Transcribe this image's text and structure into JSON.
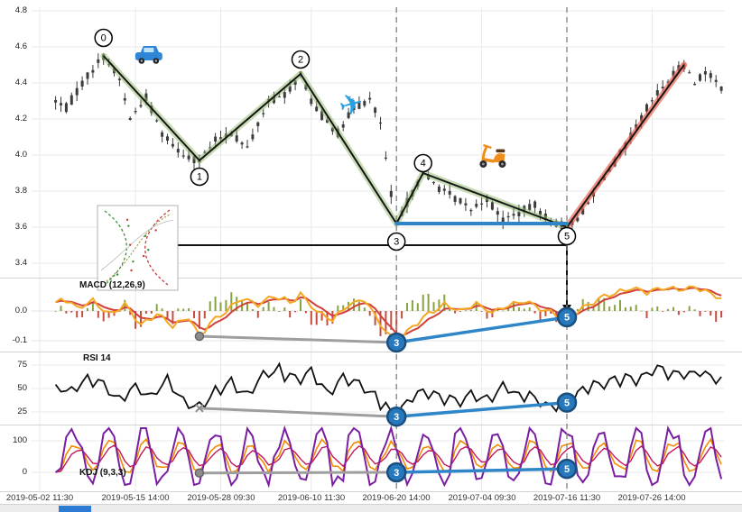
{
  "chart_data": {
    "type": "candlestick_with_indicators",
    "x_tick_labels": [
      "2019-05-02 11:30",
      "2019-05-15 14:00",
      "2019-05-28 09:30",
      "2019-06-10 11:30",
      "2019-06-20 14:00",
      "2019-07-04 09:30",
      "2019-07-16 11:30",
      "2019-07-26 14:00"
    ],
    "x_tick_bars": [
      1,
      19,
      35,
      52,
      68,
      84,
      100,
      116
    ],
    "bars": {
      "start": 4,
      "end": 129
    },
    "price_panel": {
      "y_tick_labels": [
        "4.8",
        "4.6",
        "4.4",
        "4.2",
        "4.0",
        "3.8",
        "3.6",
        "3.4"
      ],
      "y_ticks": [
        4.8,
        4.6,
        4.4,
        4.2,
        4.0,
        3.8,
        3.6,
        3.4
      ],
      "ylim": [
        3.31,
        4.82
      ],
      "price_anchors": [
        [
          4,
          4.3
        ],
        [
          6,
          4.26
        ],
        [
          9,
          4.4
        ],
        [
          13,
          4.55
        ],
        [
          16,
          4.42
        ],
        [
          18,
          4.2
        ],
        [
          21,
          4.32
        ],
        [
          24,
          4.12
        ],
        [
          28,
          4.0
        ],
        [
          31,
          3.97
        ],
        [
          34,
          4.08
        ],
        [
          37,
          4.12
        ],
        [
          40,
          4.04
        ],
        [
          44,
          4.3
        ],
        [
          47,
          4.33
        ],
        [
          50,
          4.45
        ],
        [
          52,
          4.3
        ],
        [
          54,
          4.22
        ],
        [
          57,
          4.12
        ],
        [
          60,
          4.26
        ],
        [
          63,
          4.31
        ],
        [
          65,
          4.18
        ],
        [
          66,
          3.98
        ],
        [
          67,
          3.78
        ],
        [
          68,
          3.62
        ],
        [
          70,
          3.74
        ],
        [
          73,
          3.9
        ],
        [
          76,
          3.82
        ],
        [
          79,
          3.76
        ],
        [
          82,
          3.7
        ],
        [
          85,
          3.76
        ],
        [
          88,
          3.64
        ],
        [
          91,
          3.68
        ],
        [
          94,
          3.72
        ],
        [
          97,
          3.63
        ],
        [
          100,
          3.6
        ],
        [
          103,
          3.68
        ],
        [
          106,
          3.84
        ],
        [
          109,
          3.96
        ],
        [
          112,
          4.1
        ],
        [
          115,
          4.26
        ],
        [
          118,
          4.38
        ],
        [
          121,
          4.48
        ],
        [
          122,
          4.5
        ],
        [
          124,
          4.4
        ],
        [
          126,
          4.46
        ],
        [
          129,
          4.38
        ]
      ],
      "wave_points": [
        {
          "label": "0",
          "bar": 13,
          "price": 4.55,
          "dy": -20
        },
        {
          "label": "1",
          "bar": 31,
          "price": 3.97,
          "dy": 18
        },
        {
          "label": "2",
          "bar": 50,
          "price": 4.45,
          "dy": -16
        },
        {
          "label": "3",
          "bar": 68,
          "price": 3.62,
          "dy": 20
        },
        {
          "label": "4",
          "bar": 73,
          "price": 3.9,
          "dy": -11
        },
        {
          "label": "5",
          "bar": 100,
          "price": 3.6,
          "dy": 10
        }
      ],
      "trend_end": {
        "bar": 122,
        "price": 4.5
      },
      "flat_line": {
        "from_bar": 68,
        "to_bar": 100,
        "price": 3.62
      },
      "support_line": {
        "price": 3.5,
        "from_bar": 27,
        "to_bar": 100
      },
      "dashed_vlines_bars": [
        68,
        100
      ],
      "icons": [
        {
          "name": "car-icon",
          "bar": 21.5,
          "price": 4.56
        },
        {
          "name": "airplane-icon",
          "bar": 59.5,
          "price": 4.28
        },
        {
          "name": "scooter-icon",
          "bar": 86,
          "price": 4.01
        }
      ]
    },
    "macd_panel": {
      "label": "MACD (12,26,9)",
      "y_tick_labels": [
        "0.0",
        "-0.1"
      ],
      "y_ticks": [
        0.0,
        -0.1
      ],
      "anchors": [
        [
          4,
          0.02
        ],
        [
          5,
          0.045
        ],
        [
          8,
          0.01
        ],
        [
          11,
          0.035
        ],
        [
          14,
          -0.01
        ],
        [
          17,
          0.02
        ],
        [
          20,
          -0.045
        ],
        [
          23,
          -0.01
        ],
        [
          26,
          -0.05
        ],
        [
          29,
          -0.02
        ],
        [
          31,
          -0.085
        ],
        [
          33,
          -0.04
        ],
        [
          36,
          0.0
        ],
        [
          39,
          0.045
        ],
        [
          42,
          0.02
        ],
        [
          45,
          0.05
        ],
        [
          48,
          0.03
        ],
        [
          50,
          0.055
        ],
        [
          53,
          0.0
        ],
        [
          56,
          -0.03
        ],
        [
          59,
          0.02
        ],
        [
          62,
          0.04
        ],
        [
          64,
          -0.02
        ],
        [
          66,
          -0.07
        ],
        [
          68,
          -0.106
        ],
        [
          71,
          -0.05
        ],
        [
          74,
          -0.01
        ],
        [
          77,
          0.02
        ],
        [
          80,
          0.0
        ],
        [
          83,
          0.025
        ],
        [
          86,
          -0.005
        ],
        [
          89,
          0.02
        ],
        [
          92,
          0.035
        ],
        [
          95,
          0.01
        ],
        [
          98,
          -0.01
        ],
        [
          100,
          -0.021
        ],
        [
          103,
          0.01
        ],
        [
          106,
          0.04
        ],
        [
          109,
          0.06
        ],
        [
          112,
          0.075
        ],
        [
          115,
          0.065
        ],
        [
          118,
          0.08
        ],
        [
          121,
          0.07
        ],
        [
          124,
          0.08
        ],
        [
          127,
          0.06
        ],
        [
          129,
          0.045
        ]
      ],
      "markers": [
        {
          "type": "dot",
          "bar": 31,
          "value": -0.085
        },
        {
          "type": "circle",
          "label": "3",
          "bar": 68,
          "value": -0.106
        },
        {
          "type": "circle",
          "label": "5",
          "bar": 100,
          "value": -0.021
        }
      ]
    },
    "rsi_panel": {
      "label": "RSI 14",
      "y_tick_labels": [
        "75",
        "50",
        "25"
      ],
      "y_ticks": [
        75,
        50,
        25
      ],
      "anchors": [
        [
          4,
          52
        ],
        [
          7,
          45
        ],
        [
          10,
          62
        ],
        [
          13,
          55
        ],
        [
          16,
          38
        ],
        [
          19,
          52
        ],
        [
          22,
          44
        ],
        [
          25,
          60
        ],
        [
          28,
          35
        ],
        [
          31,
          29
        ],
        [
          34,
          48
        ],
        [
          37,
          55
        ],
        [
          40,
          42
        ],
        [
          43,
          65
        ],
        [
          46,
          70
        ],
        [
          49,
          58
        ],
        [
          52,
          66
        ],
        [
          55,
          48
        ],
        [
          58,
          60
        ],
        [
          61,
          52
        ],
        [
          64,
          40
        ],
        [
          66,
          30
        ],
        [
          68,
          20
        ],
        [
          70,
          34
        ],
        [
          73,
          48
        ],
        [
          76,
          40
        ],
        [
          79,
          36
        ],
        [
          82,
          44
        ],
        [
          85,
          38
        ],
        [
          88,
          52
        ],
        [
          91,
          44
        ],
        [
          94,
          40
        ],
        [
          97,
          33
        ],
        [
          100,
          35
        ],
        [
          103,
          47
        ],
        [
          106,
          56
        ],
        [
          109,
          62
        ],
        [
          112,
          58
        ],
        [
          115,
          66
        ],
        [
          118,
          70
        ],
        [
          121,
          64
        ],
        [
          124,
          68
        ],
        [
          127,
          60
        ],
        [
          129,
          56
        ]
      ],
      "markers": [
        {
          "type": "x",
          "bar": 31,
          "value": 29
        },
        {
          "type": "circle",
          "label": "3",
          "bar": 68,
          "value": 20
        },
        {
          "type": "circle",
          "label": "5",
          "bar": 100,
          "value": 35
        }
      ]
    },
    "kdj_panel": {
      "label": "KDJ (9,3,3)",
      "y_tick_labels": [
        "100",
        "0"
      ],
      "y_ticks": [
        100,
        0
      ],
      "markers": [
        {
          "type": "dot",
          "bar": 31,
          "value": -2
        },
        {
          "type": "circle",
          "label": "3",
          "bar": 68,
          "value": 0
        },
        {
          "type": "circle",
          "label": "5",
          "bar": 100,
          "value": 11
        }
      ]
    },
    "colors": {
      "candle": "#3c3c3c",
      "band_green": "rgba(146,186,108,0.5)",
      "band_red": "rgba(233,92,74,0.65)",
      "wave_line": "#151515",
      "flat_blue": "#2e86c8",
      "support_black": "#111111",
      "macd_fast": "#f5a623",
      "macd_slow": "#d0413b",
      "hist_pos": "#7a9a2e",
      "hist_neg": "#c0392b",
      "rsi_line": "#111111",
      "kdj_k": "#f08c00",
      "kdj_d": "#c2185b",
      "kdj_j": "#7b1fa2",
      "connector_gray": "#9e9e9e",
      "connector_blue": "#2e86c8",
      "marker_blue_fill": "#2779bd",
      "marker_blue_stroke": "#1b4e7e"
    }
  },
  "scrollbar": {
    "visible": true
  }
}
